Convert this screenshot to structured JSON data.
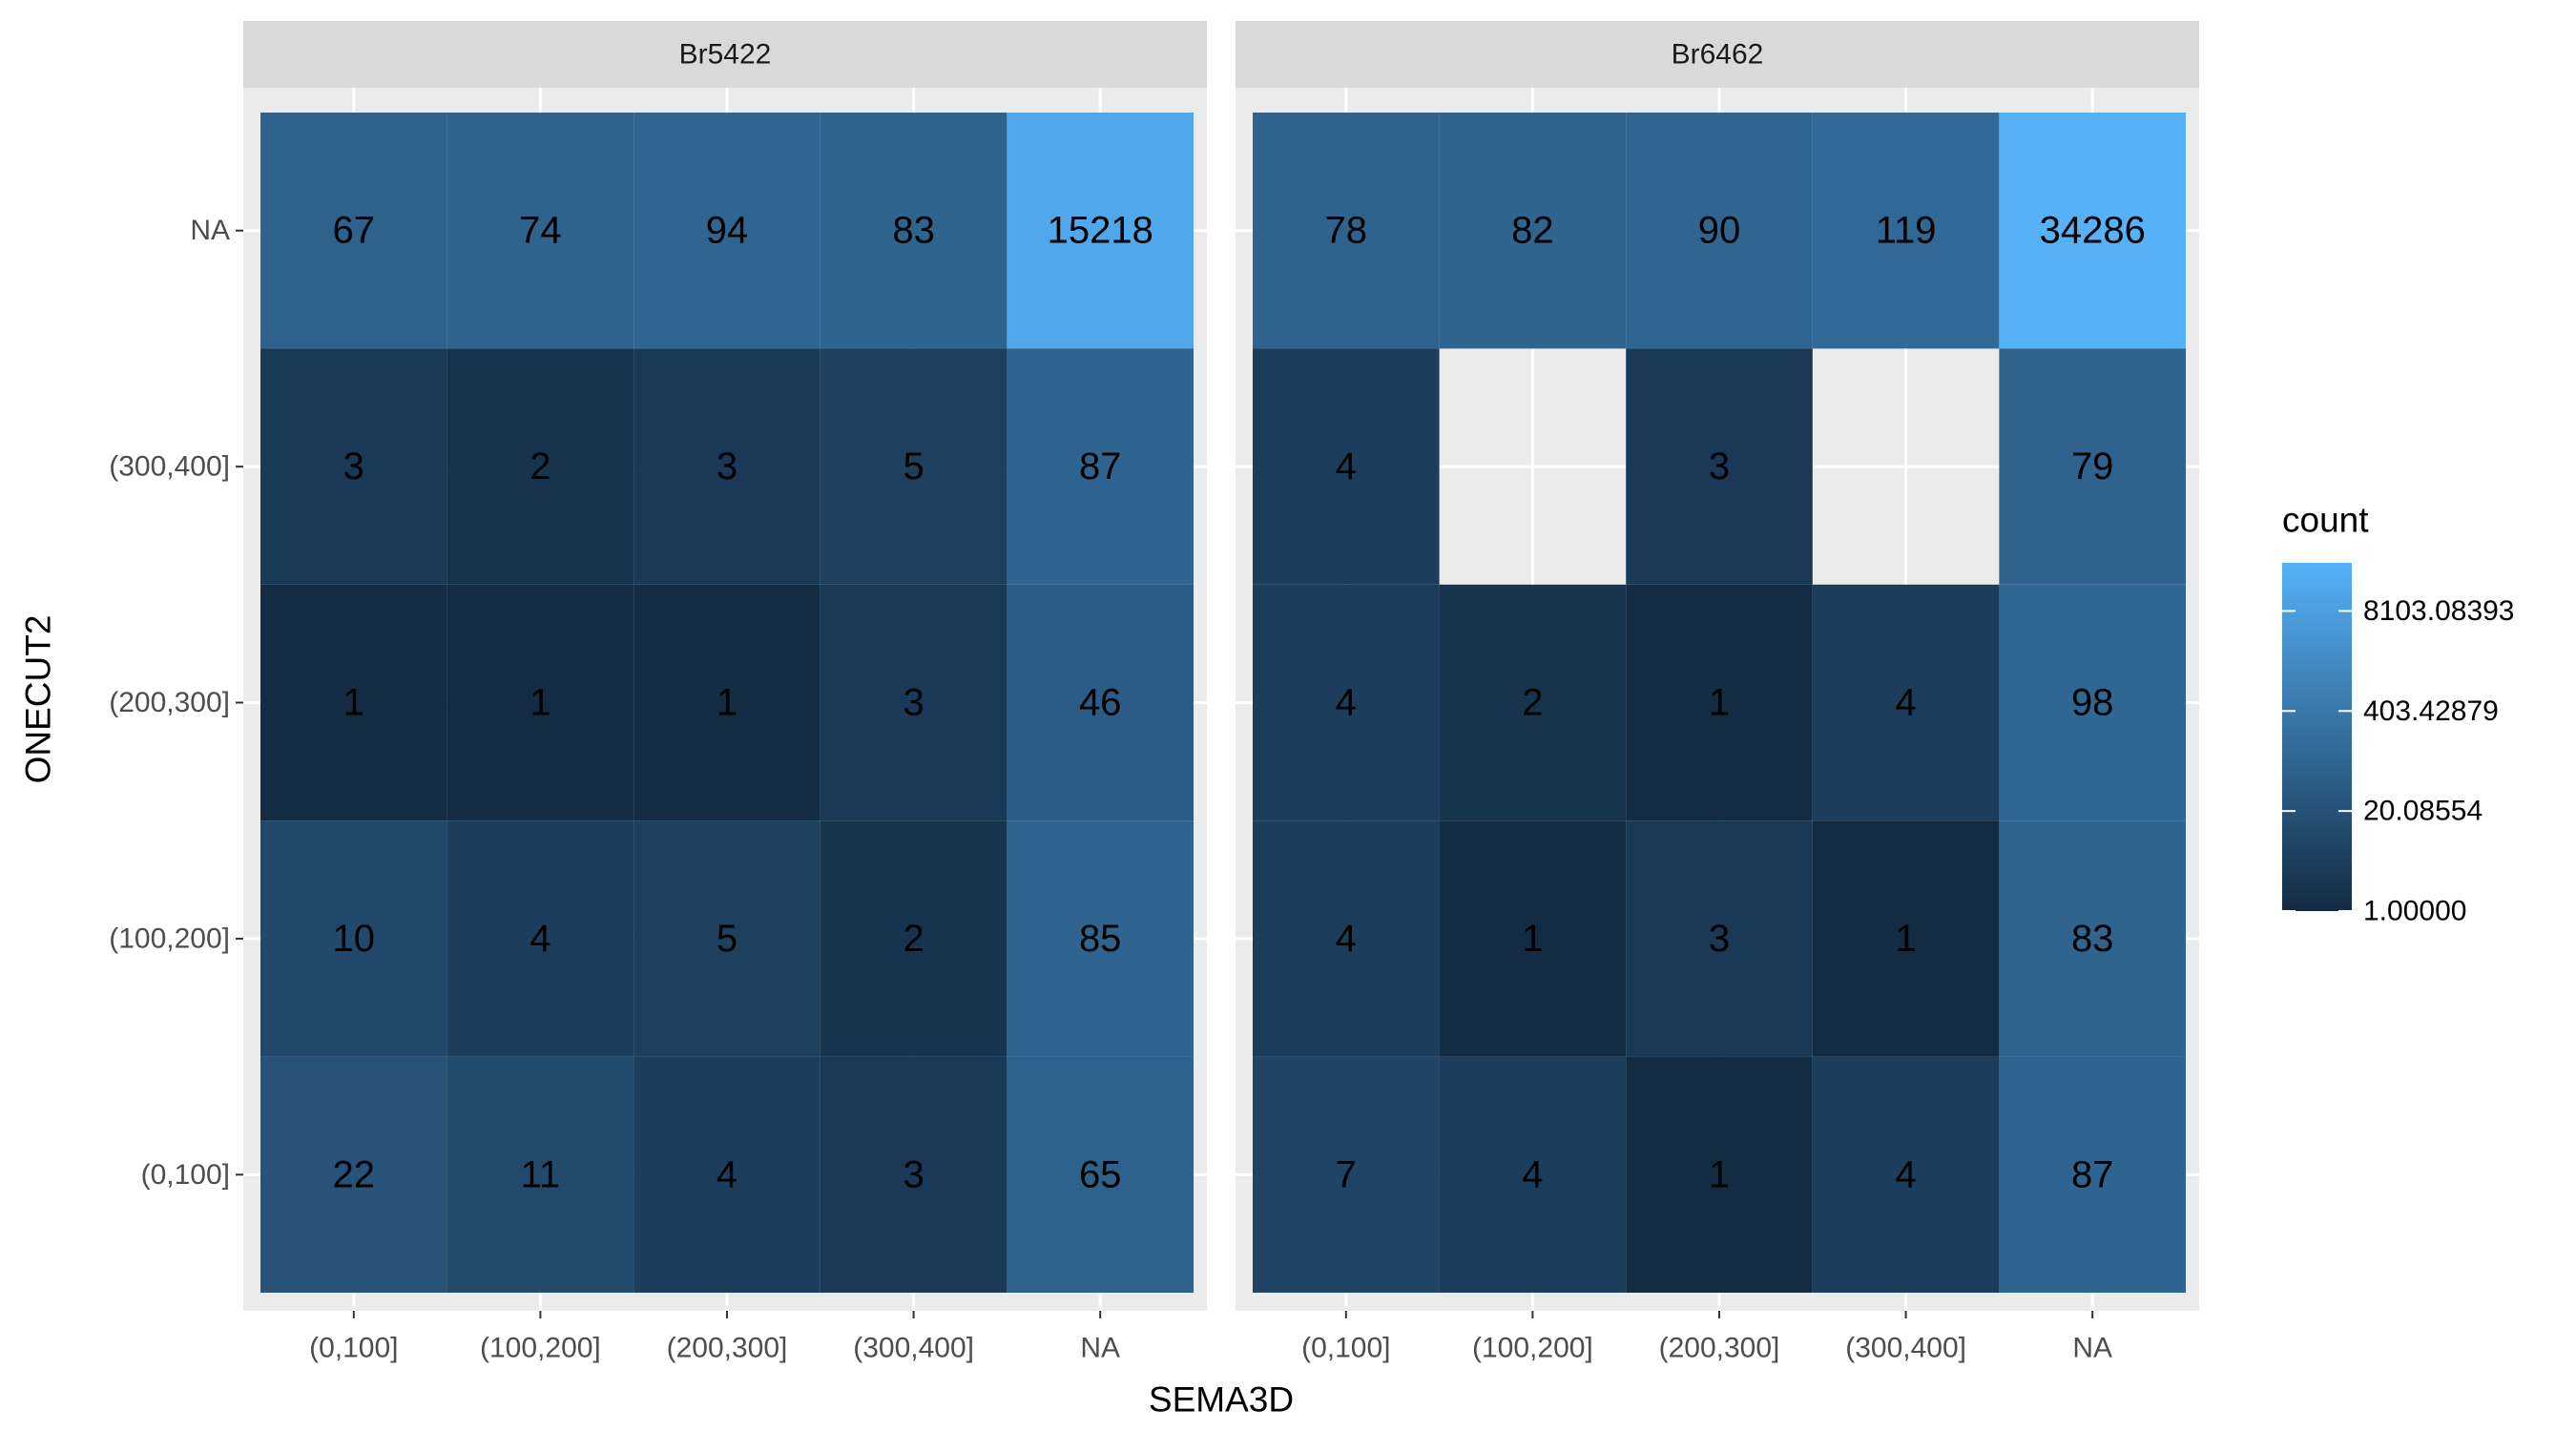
{
  "chart_data": {
    "type": "heatmap",
    "title": "",
    "xlabel": "SEMA3D",
    "ylabel": "ONECUT2",
    "x_categories": [
      "(0,100]",
      "(100,200]",
      "(200,300]",
      "(300,400]",
      "NA"
    ],
    "y_categories": [
      "NA",
      "(300,400]",
      "(200,300]",
      "(100,200]",
      "(0,100]"
    ],
    "facets": [
      {
        "name": "Br5422",
        "values": [
          [
            67,
            74,
            94,
            83,
            15218
          ],
          [
            3,
            2,
            3,
            5,
            87
          ],
          [
            1,
            1,
            1,
            3,
            46
          ],
          [
            10,
            4,
            5,
            2,
            85
          ],
          [
            22,
            11,
            4,
            3,
            65
          ]
        ]
      },
      {
        "name": "Br6462",
        "values": [
          [
            78,
            82,
            90,
            119,
            34286
          ],
          [
            4,
            null,
            3,
            null,
            79
          ],
          [
            4,
            2,
            1,
            4,
            98
          ],
          [
            4,
            1,
            3,
            1,
            83
          ],
          [
            7,
            4,
            1,
            4,
            87
          ]
        ]
      }
    ],
    "legend": {
      "title": "count",
      "position": "right",
      "scale": "log",
      "range": [
        1,
        34286
      ],
      "breaks": [
        1.0,
        20.08554,
        403.42879,
        8103.08393
      ],
      "break_labels": [
        "1.00000",
        "20.08554",
        "403.42879",
        "8103.08393"
      ],
      "low_color": "#132B43",
      "high_color": "#56B1F7"
    },
    "panel_background": "#EBEBEB",
    "strip_background": "#D9D9D9",
    "grid": true
  }
}
